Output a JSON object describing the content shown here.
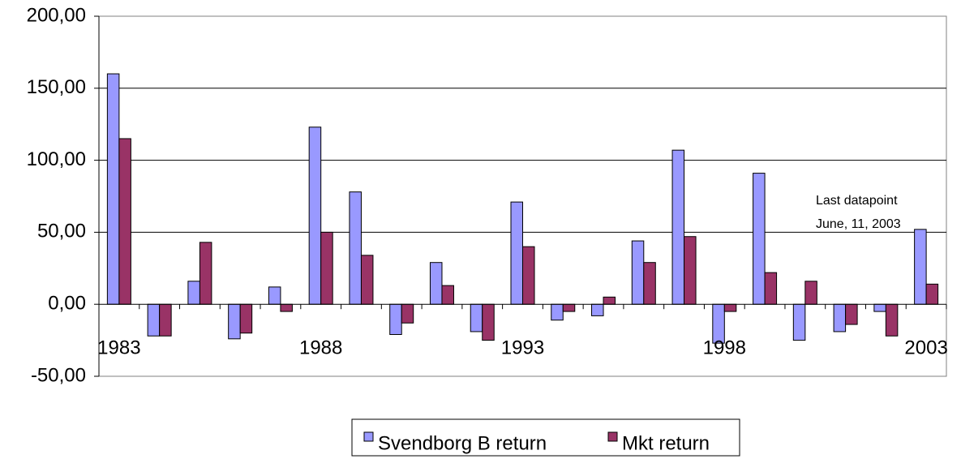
{
  "chart_data": {
    "type": "bar",
    "categories": [
      "1983",
      null,
      null,
      null,
      null,
      "1988",
      null,
      null,
      null,
      null,
      "1993",
      null,
      null,
      null,
      null,
      "1998",
      null,
      null,
      null,
      null,
      "2003"
    ],
    "series": [
      {
        "name": "Svendborg B return",
        "color": "#9999ff",
        "values": [
          160,
          -22,
          16,
          -24,
          12,
          123,
          78,
          -21,
          29,
          -19,
          71,
          -11,
          -8,
          44,
          107,
          -27,
          91,
          -25,
          -19,
          -5,
          52
        ]
      },
      {
        "name": "Mkt return",
        "color": "#993366",
        "values": [
          115,
          -22,
          43,
          -20,
          -5,
          50,
          34,
          -13,
          13,
          -25,
          40,
          -5,
          5,
          29,
          47,
          -5,
          22,
          16,
          -14,
          -22,
          14
        ]
      }
    ],
    "ylim": [
      -50,
      200
    ],
    "yticks": [
      {
        "value": -50,
        "label": "-50,00"
      },
      {
        "value": 0,
        "label": "0,00"
      },
      {
        "value": 50,
        "label": "50,00"
      },
      {
        "value": 100,
        "label": "100,00"
      },
      {
        "value": 150,
        "label": "150,00"
      },
      {
        "value": 200,
        "label": "200,00"
      }
    ],
    "grid": true,
    "annotation": [
      "Last datapoint",
      "June, 11, 2003"
    ]
  }
}
